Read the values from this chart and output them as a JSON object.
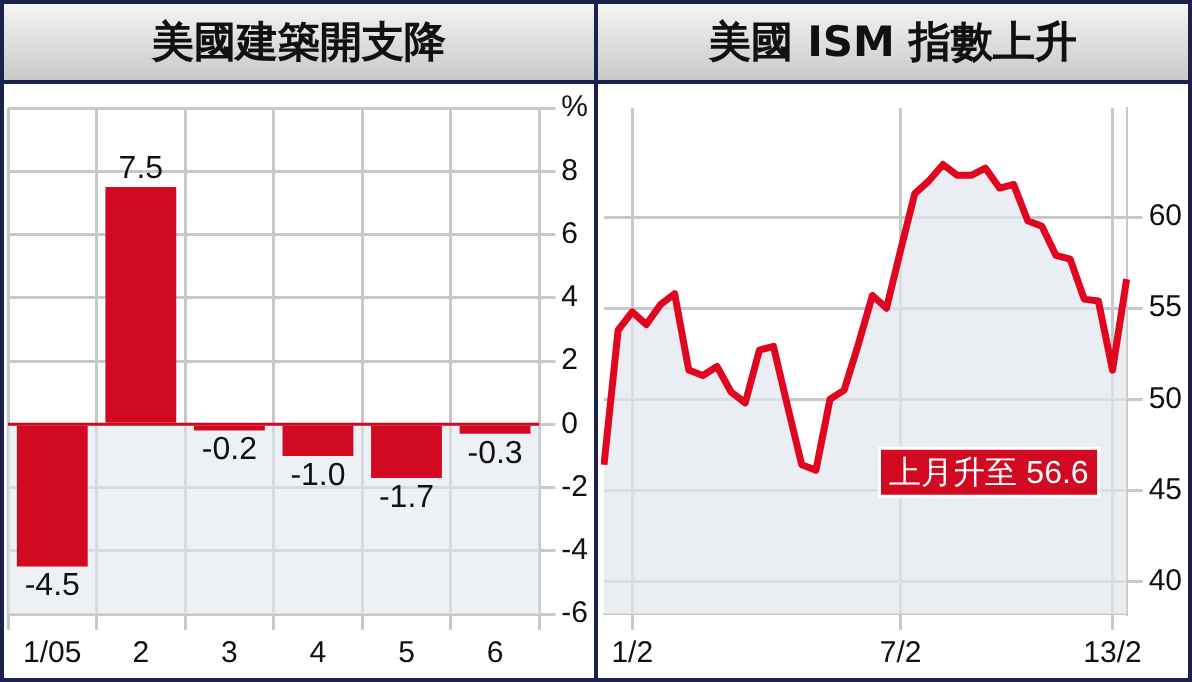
{
  "chart_data": [
    {
      "type": "bar",
      "title": "美國建築開支降",
      "categories": [
        "1/05",
        "2",
        "3",
        "4",
        "5",
        "6"
      ],
      "values": [
        -4.5,
        7.5,
        -0.2,
        -1.0,
        -1.7,
        -0.3
      ],
      "color": "#d10a22",
      "ylim": [
        -6,
        10
      ],
      "yticks": [
        -6,
        -4,
        -2,
        0,
        2,
        4,
        6,
        8,
        {
          "value": 10,
          "label": "%"
        }
      ],
      "grid": true,
      "value_labels": [
        "-4.5",
        "7.5",
        "-0.2",
        "-1.0",
        "-1.7",
        "-0.3"
      ],
      "ref_lines": [
        {
          "axis": "y",
          "value": 0,
          "color": "#d10a22"
        }
      ]
    },
    {
      "type": "area",
      "title": "美國 ISM 指數上升",
      "categories": [
        null,
        null,
        "1/2",
        null,
        null,
        null,
        null,
        null,
        null,
        null,
        null,
        null,
        null,
        null,
        null,
        null,
        null,
        null,
        null,
        null,
        null,
        "7/2",
        null,
        null,
        null,
        null,
        null,
        null,
        null,
        null,
        null,
        null,
        null,
        null,
        null,
        null,
        "13/2",
        null
      ],
      "series": [
        {
          "color": "#e0061f",
          "values": [
            46.4,
            53.8,
            54.8,
            54.1,
            55.2,
            55.8,
            51.6,
            51.3,
            51.8,
            50.4,
            49.8,
            52.7,
            52.9,
            49.6,
            46.4,
            46.1,
            50.0,
            50.5,
            53.0,
            55.7,
            55.0,
            58.2,
            61.3,
            62.0,
            62.9,
            62.3,
            62.3,
            62.7,
            61.6,
            61.8,
            59.8,
            59.5,
            57.9,
            57.7,
            55.5,
            55.4,
            51.6,
            56.6
          ]
        }
      ],
      "ylim": [
        38.2,
        66
      ],
      "yticks": [
        40,
        45,
        50,
        55,
        60
      ],
      "grid": true,
      "annotations": [
        "上月升至 56.6"
      ]
    }
  ]
}
